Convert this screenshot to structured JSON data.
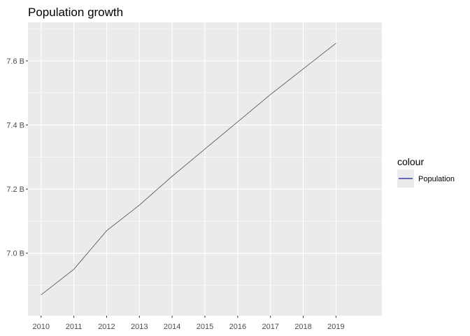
{
  "chart_data": {
    "type": "line",
    "title": "Population growth",
    "xlabel": "",
    "ylabel": "",
    "x": [
      2010,
      2011,
      2012,
      2013,
      2014,
      2015,
      2016,
      2017,
      2018,
      2019
    ],
    "series": [
      {
        "name": "Population",
        "values": [
          6.87,
          6.95,
          7.07,
          7.15,
          7.24,
          7.325,
          7.41,
          7.495,
          7.575,
          7.655
        ],
        "color": "#1A1A8C"
      }
    ],
    "xlim": [
      2009.6,
      2020.4
    ],
    "ylim": [
      6.805,
      7.72
    ],
    "x_ticks": [
      2010,
      2011,
      2012,
      2013,
      2014,
      2015,
      2016,
      2017,
      2018,
      2019
    ],
    "x_tick_labels": [
      "2010",
      "2011",
      "2012",
      "2013",
      "2014",
      "2015",
      "2016",
      "2017",
      "2018",
      "2019"
    ],
    "y_ticks": [
      7.0,
      7.2,
      7.4,
      7.6
    ],
    "y_tick_labels": [
      "7.0 B",
      "7.2 B",
      "7.4 B",
      "7.6 B"
    ],
    "grid": true,
    "legend": {
      "title": "colour",
      "position": "right",
      "entries": [
        "Population"
      ]
    },
    "colors": {
      "panel_background": "#EBEBEB",
      "grid_major": "#FFFFFF",
      "line": "#333333",
      "legend_key_line": "#1A1A8C"
    }
  }
}
